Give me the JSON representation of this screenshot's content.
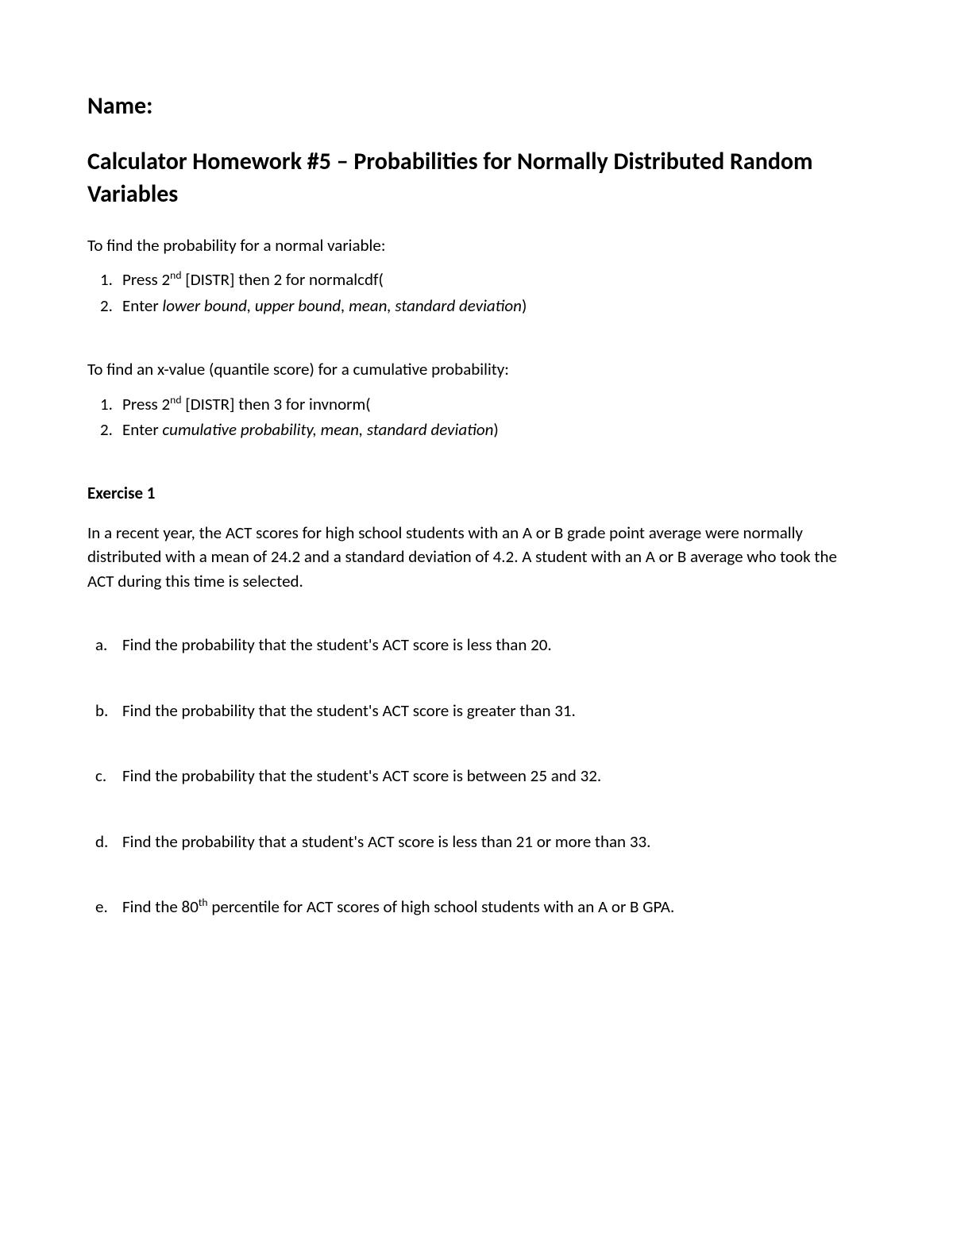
{
  "name_label": "Name:",
  "title": "Calculator Homework #5 – Probabilities for Normally Distributed Random Variables",
  "section1": {
    "intro": "To find the probability for a normal variable:",
    "step1_pre": "Press 2",
    "step1_sup": "nd",
    "step1_post": " [DISTR] then 2 for normalcdf(",
    "step2_pre": "Enter ",
    "step2_italic": "lower bound, upper bound, mean, standard deviation",
    "step2_post": ")"
  },
  "section2": {
    "intro": "To find an x-value (quantile score) for a cumulative probability:",
    "step1_pre": "Press 2",
    "step1_sup": "nd",
    "step1_post": " [DISTR] then 3 for invnorm(",
    "step2_pre": "Enter ",
    "step2_italic": "cumulative probability, mean, standard deviation",
    "step2_post": ")"
  },
  "exercise": {
    "heading": "Exercise 1",
    "intro": "In a recent year, the ACT scores for high school students with an A or B grade point average were normally distributed with a mean of 24.2 and a standard deviation of 4.2.  A student with an A or B average who took the ACT during this time is selected.",
    "a": "Find the probability that the student's ACT score is less than 20.",
    "b": "Find the probability that the student's ACT score is greater than 31.",
    "c": "Find the probability that the student's ACT score is between 25 and 32.",
    "d": "Find the probability that a student's ACT score is less than 21 or more than 33.",
    "e_pre": "Find the 80",
    "e_sup": "th",
    "e_post": " percentile for ACT scores of high school students with an A or B GPA."
  },
  "labels": {
    "n1": "1.",
    "n2": "2.",
    "a": "a.",
    "b": "b.",
    "c": "c.",
    "d": "d.",
    "e": "e."
  }
}
